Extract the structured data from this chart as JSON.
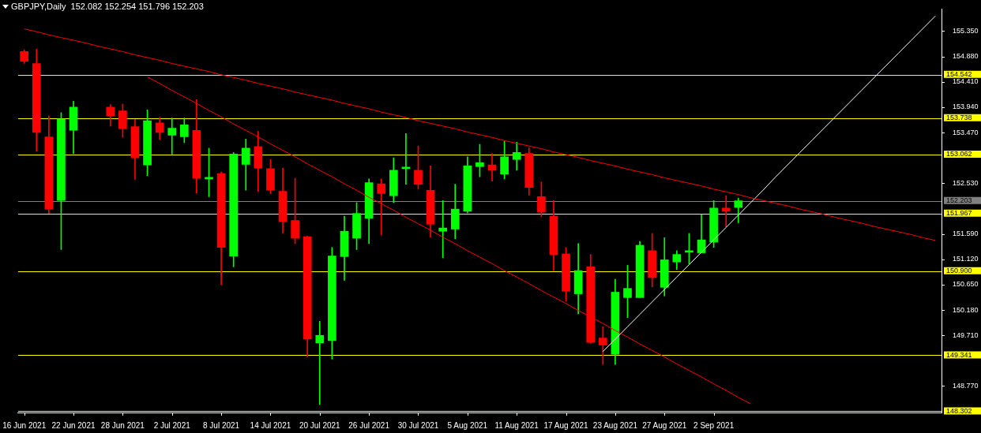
{
  "chart_data": {
    "type": "candlestick",
    "title": "GBPJPY,Daily  152.082 152.254 151.796 152.203",
    "categories": [
      "16 Jun 2021",
      null,
      null,
      null,
      "22 Jun 2021",
      null,
      null,
      null,
      "28 Jun 2021",
      null,
      null,
      null,
      "2 Jul 2021",
      null,
      null,
      null,
      "8 Jul 2021",
      null,
      null,
      null,
      "14 Jul 2021",
      null,
      null,
      null,
      "20 Jul 2021",
      null,
      null,
      null,
      "26 Jul 2021",
      null,
      null,
      null,
      "30 Jul 2021",
      null,
      null,
      null,
      "5 Aug 2021",
      null,
      null,
      null,
      "11 Aug 2021",
      null,
      null,
      null,
      "17 Aug 2021",
      null,
      null,
      null,
      "23 Aug 2021",
      null,
      null,
      null,
      "27 Aug 2021",
      null,
      null,
      null,
      "2 Sep 2021",
      null,
      null,
      null,
      null,
      null,
      null,
      null,
      null,
      null,
      null,
      null,
      null,
      null,
      null,
      null,
      null,
      null,
      null
    ],
    "ohlc": [
      [
        154.97,
        155.0,
        154.75,
        154.79
      ],
      [
        154.75,
        155.02,
        153.12,
        153.47
      ],
      [
        153.39,
        153.78,
        151.97,
        152.05
      ],
      [
        152.21,
        153.84,
        151.3,
        153.72
      ],
      [
        153.51,
        154.05,
        153.08,
        153.94
      ],
      null,
      null,
      [
        153.94,
        153.99,
        153.59,
        153.78
      ],
      [
        153.87,
        154.0,
        153.38,
        153.54
      ],
      [
        153.58,
        153.71,
        152.6,
        153.0
      ],
      [
        152.87,
        153.89,
        152.67,
        153.69
      ],
      [
        153.65,
        153.75,
        153.34,
        153.47
      ],
      [
        153.42,
        153.74,
        153.07,
        153.55
      ],
      [
        153.39,
        153.74,
        153.28,
        153.61
      ],
      [
        153.51,
        154.08,
        152.35,
        152.62
      ],
      [
        152.61,
        153.18,
        152.28,
        152.64
      ],
      [
        152.71,
        152.74,
        150.65,
        151.34
      ],
      [
        151.18,
        153.1,
        150.98,
        153.07
      ],
      [
        152.88,
        153.35,
        152.4,
        153.18
      ],
      [
        153.21,
        153.49,
        152.38,
        152.81
      ],
      [
        152.8,
        152.97,
        152.34,
        152.4
      ],
      [
        152.38,
        152.81,
        151.6,
        151.82
      ],
      [
        151.84,
        152.62,
        151.41,
        151.51
      ],
      [
        151.54,
        151.55,
        149.31,
        149.64
      ],
      [
        149.57,
        149.97,
        148.43,
        149.71
      ],
      [
        149.61,
        151.34,
        149.27,
        151.18
      ],
      [
        151.17,
        151.92,
        150.73,
        151.64
      ],
      [
        151.51,
        152.17,
        151.3,
        151.97
      ],
      [
        151.88,
        152.61,
        151.41,
        152.54
      ],
      [
        152.52,
        152.61,
        151.57,
        152.34
      ],
      [
        152.3,
        153.0,
        152.17,
        152.77
      ],
      [
        152.8,
        153.45,
        152.51,
        152.82
      ],
      [
        152.77,
        153.22,
        152.42,
        152.51
      ],
      [
        152.4,
        152.85,
        151.53,
        151.77
      ],
      [
        151.64,
        152.21,
        151.15,
        151.7
      ],
      [
        151.68,
        152.51,
        151.5,
        152.05
      ],
      [
        152.01,
        153.02,
        151.98,
        152.85
      ],
      [
        152.84,
        153.25,
        152.65,
        152.91
      ],
      [
        152.87,
        153.08,
        152.57,
        152.77
      ],
      [
        152.7,
        153.31,
        152.61,
        153.02
      ],
      [
        152.97,
        153.29,
        152.77,
        153.1
      ],
      [
        153.08,
        153.19,
        152.31,
        152.45
      ],
      [
        152.28,
        152.55,
        151.91,
        152.0
      ],
      [
        151.92,
        152.21,
        150.91,
        151.21
      ],
      [
        151.22,
        151.34,
        150.34,
        150.53
      ],
      [
        150.48,
        151.41,
        150.11,
        150.91
      ],
      [
        150.98,
        151.21,
        149.56,
        149.58
      ],
      [
        149.66,
        149.87,
        149.17,
        149.53
      ],
      [
        149.36,
        150.75,
        149.17,
        150.51
      ],
      [
        150.41,
        151.01,
        150.04,
        150.58
      ],
      [
        150.41,
        151.45,
        150.41,
        151.38
      ],
      [
        151.28,
        151.6,
        150.61,
        150.78
      ],
      [
        150.6,
        151.52,
        150.44,
        151.11
      ],
      [
        151.07,
        151.28,
        150.93,
        151.21
      ],
      [
        151.25,
        151.6,
        151.03,
        151.28
      ],
      [
        151.24,
        151.95,
        151.24,
        151.48
      ],
      [
        151.44,
        152.21,
        151.34,
        152.07
      ],
      [
        152.07,
        152.3,
        151.72,
        152.01
      ],
      [
        152.082,
        152.254,
        151.796,
        152.203
      ],
      null,
      null,
      null,
      null,
      null,
      null,
      null,
      null,
      null,
      null,
      null,
      null,
      null,
      null,
      null,
      null
    ],
    "colors": [
      "#ff0000",
      "#ff0000",
      "#ff0000",
      "#00ff00",
      "#00ff00",
      null,
      null,
      "#ff0000",
      "#ff0000",
      "#ff0000",
      "#00ff00",
      "#ff0000",
      "#00ff00",
      "#00ff00",
      "#ff0000",
      "#00ff00",
      "#ff0000",
      "#00ff00",
      "#00ff00",
      "#ff0000",
      "#ff0000",
      "#ff0000",
      "#ff0000",
      "#ff0000",
      "#00ff00",
      "#00ff00",
      "#00ff00",
      "#00ff00",
      "#00ff00",
      "#ff0000",
      "#00ff00",
      "#00ff00",
      "#ff0000",
      "#ff0000",
      "#00ff00",
      "#00ff00",
      "#00ff00",
      "#00ff00",
      "#ff0000",
      "#00ff00",
      "#00ff00",
      "#ff0000",
      "#ff0000",
      "#ff0000",
      "#ff0000",
      "#00ff00",
      "#ff0000",
      "#ff0000",
      "#00ff00",
      "#00ff00",
      "#00ff00",
      "#ff0000",
      "#00ff00",
      "#00ff00",
      "#00ff00",
      "#00ff00",
      "#00ff00",
      "#ff0000",
      "#00ff00",
      null,
      null,
      null,
      null,
      null,
      null,
      null,
      null,
      null,
      null,
      null,
      null,
      null,
      null,
      null,
      null
    ],
    "series": [
      {
        "type": "line",
        "color": "#ff0000",
        "values": [
          155.39,
          155.34,
          155.28,
          155.23,
          155.18,
          155.13,
          155.07,
          155.02,
          154.97,
          154.91,
          154.86,
          154.81,
          154.75,
          154.7,
          154.65,
          154.6,
          154.54,
          154.49,
          154.44,
          154.38,
          154.33,
          154.28,
          154.22,
          154.17,
          154.12,
          154.07,
          154.01,
          153.96,
          153.91,
          153.85,
          153.8,
          153.75,
          153.69,
          153.64,
          153.59,
          153.54,
          153.48,
          153.43,
          153.38,
          153.32,
          153.27,
          153.22,
          153.17,
          153.11,
          153.06,
          153.01,
          152.95,
          152.9,
          152.85,
          152.79,
          152.74,
          152.69,
          152.63,
          152.58,
          152.53,
          152.48,
          152.42,
          152.37,
          152.32,
          152.26,
          152.21,
          152.16,
          152.11,
          152.05,
          152.0,
          151.95,
          151.89,
          151.84,
          151.79,
          151.73,
          151.68,
          151.63,
          151.58,
          151.52,
          151.47
        ]
      },
      {
        "type": "line",
        "color": "#ff0000",
        "values": [
          null,
          null,
          null,
          null,
          null,
          null,
          null,
          null,
          null,
          null,
          154.5,
          154.38,
          154.25,
          154.13,
          154.01,
          153.88,
          153.76,
          153.63,
          153.51,
          153.39,
          153.26,
          153.14,
          153.02,
          152.89,
          152.77,
          152.65,
          152.52,
          152.4,
          152.27,
          152.15,
          152.03,
          151.9,
          151.78,
          151.66,
          151.53,
          151.41,
          151.28,
          151.16,
          151.04,
          150.91,
          150.79,
          150.67,
          150.54,
          150.42,
          150.3,
          150.17,
          150.05,
          149.93,
          149.8,
          149.68,
          149.55,
          149.43,
          149.31,
          149.18,
          149.06,
          148.94,
          148.81,
          148.69,
          148.56,
          148.44,
          null,
          null,
          null,
          null,
          null,
          null,
          null,
          null,
          null,
          null,
          null,
          null,
          null,
          null,
          null
        ]
      },
      {
        "type": "line",
        "color": "#ffffff",
        "values": [
          null,
          null,
          null,
          null,
          null,
          null,
          null,
          null,
          null,
          null,
          null,
          null,
          null,
          null,
          null,
          null,
          null,
          null,
          null,
          null,
          null,
          null,
          null,
          null,
          null,
          null,
          null,
          null,
          null,
          null,
          null,
          null,
          null,
          null,
          null,
          null,
          null,
          null,
          null,
          null,
          null,
          null,
          null,
          null,
          null,
          null,
          null,
          149.41,
          149.64,
          149.87,
          150.1,
          150.33,
          150.56,
          150.79,
          151.02,
          151.25,
          151.48,
          151.71,
          151.94,
          152.17,
          152.4,
          152.64,
          152.87,
          153.1,
          153.33,
          153.56,
          153.79,
          154.02,
          154.25,
          154.48,
          154.71,
          154.94,
          155.17,
          155.4,
          155.63
        ]
      }
    ],
    "ylim": [
      148.28,
      155.76
    ],
    "yticks": [
      {
        "value": 155.35,
        "label": "155.350"
      },
      {
        "value": 154.88,
        "label": "154.880"
      },
      {
        "value": 154.41,
        "label": "154.410"
      },
      {
        "value": 153.94,
        "label": "153.940"
      },
      {
        "value": 153.47,
        "label": "153.470"
      },
      {
        "value": 152.53,
        "label": "152.530"
      },
      {
        "value": 151.59,
        "label": "151.590"
      },
      {
        "value": 151.12,
        "label": "151.120"
      },
      {
        "value": 150.65,
        "label": "150.650"
      },
      {
        "value": 150.18,
        "label": "150.180"
      },
      {
        "value": 149.71,
        "label": "149.710"
      },
      {
        "value": 148.77,
        "label": "148.770"
      }
    ],
    "ref_lines": [
      {
        "axis": "y",
        "value": 154.542,
        "label": "154.542",
        "color": "#ffff00"
      },
      {
        "axis": "y",
        "value": 153.738,
        "label": "153.738",
        "color": "#ffff00"
      },
      {
        "axis": "y",
        "value": 153.062,
        "label": "153.062",
        "color": "#ffff00"
      },
      {
        "axis": "y",
        "value": 152.203,
        "label": "152.203",
        "color": "#808080"
      },
      {
        "axis": "y",
        "value": 151.967,
        "label": "151.967",
        "color": "#ffff00"
      },
      {
        "axis": "y",
        "value": 150.9,
        "label": "150.900",
        "color": "#ffff00"
      },
      {
        "axis": "y",
        "value": 149.341,
        "label": "149.341",
        "color": "#ffff00"
      },
      {
        "axis": "y",
        "value": 148.302,
        "label": "148.302",
        "color": "#ffff00"
      }
    ],
    "grid": false,
    "legend": false
  }
}
